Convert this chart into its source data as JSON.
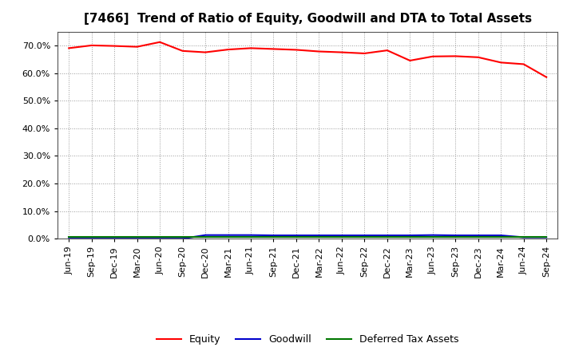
{
  "title": "[7466]  Trend of Ratio of Equity, Goodwill and DTA to Total Assets",
  "x_labels": [
    "Jun-19",
    "Sep-19",
    "Dec-19",
    "Mar-20",
    "Jun-20",
    "Sep-20",
    "Dec-20",
    "Mar-21",
    "Jun-21",
    "Sep-21",
    "Dec-21",
    "Mar-22",
    "Jun-22",
    "Sep-22",
    "Dec-22",
    "Mar-23",
    "Jun-23",
    "Sep-23",
    "Dec-23",
    "Mar-24",
    "Jun-24",
    "Sep-24"
  ],
  "equity": [
    0.69,
    0.7,
    0.698,
    0.695,
    0.712,
    0.68,
    0.675,
    0.685,
    0.69,
    0.687,
    0.684,
    0.678,
    0.675,
    0.671,
    0.682,
    0.645,
    0.66,
    0.661,
    0.657,
    0.638,
    0.632,
    0.585
  ],
  "goodwill": [
    0.0,
    0.0,
    0.0,
    0.0,
    0.0,
    0.0,
    0.013,
    0.013,
    0.013,
    0.012,
    0.012,
    0.012,
    0.012,
    0.012,
    0.012,
    0.012,
    0.013,
    0.012,
    0.012,
    0.012,
    0.005,
    0.005
  ],
  "dta": [
    0.007,
    0.007,
    0.007,
    0.007,
    0.007,
    0.007,
    0.007,
    0.007,
    0.007,
    0.007,
    0.007,
    0.007,
    0.007,
    0.007,
    0.007,
    0.007,
    0.007,
    0.007,
    0.007,
    0.007,
    0.007,
    0.007
  ],
  "equity_color": "#FF0000",
  "goodwill_color": "#0000CC",
  "dta_color": "#007700",
  "bg_color": "#FFFFFF",
  "plot_bg_color": "#FFFFFF",
  "ylim": [
    0.0,
    0.75
  ],
  "yticks": [
    0.0,
    0.1,
    0.2,
    0.3,
    0.4,
    0.5,
    0.6,
    0.7
  ],
  "legend_labels": [
    "Equity",
    "Goodwill",
    "Deferred Tax Assets"
  ],
  "title_fontsize": 11,
  "tick_fontsize": 8,
  "legend_fontsize": 9
}
